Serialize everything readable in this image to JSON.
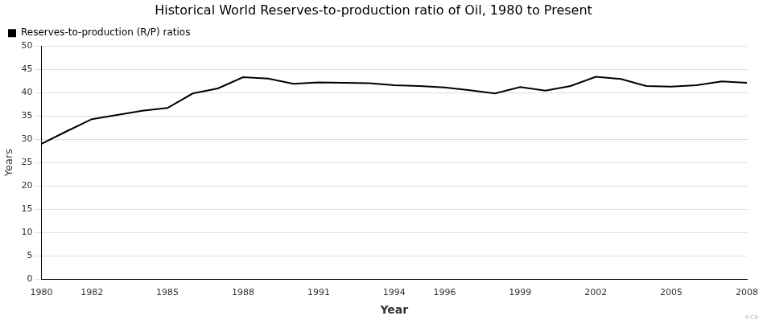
{
  "chart_data": {
    "type": "line",
    "title": "Historical World Reserves-to-production ratio of Oil, 1980 to Present",
    "x_label": "Year",
    "y_label": "Years",
    "annotation": "©CB",
    "x": [
      1980,
      1981,
      1982,
      1983,
      1984,
      1985,
      1986,
      1987,
      1988,
      1989,
      1990,
      1991,
      1992,
      1993,
      1994,
      1995,
      1996,
      1997,
      1998,
      1999,
      2000,
      2001,
      2002,
      2003,
      2004,
      2005,
      2006,
      2007,
      2008
    ],
    "series": [
      {
        "name": "Reserves-to-production (R/P) ratios",
        "color": "#000000",
        "values": [
          29.0,
          31.7,
          34.3,
          35.2,
          36.1,
          36.7,
          39.8,
          40.9,
          43.3,
          43.0,
          41.9,
          42.2,
          42.1,
          42.0,
          41.6,
          41.4,
          41.1,
          40.5,
          39.8,
          41.2,
          40.4,
          41.4,
          43.4,
          42.9,
          41.4,
          41.3,
          41.6,
          42.4,
          42.1
        ]
      }
    ],
    "xlim": [
      1980,
      2008
    ],
    "xticks": [
      1980,
      1982,
      1985,
      1988,
      1991,
      1994,
      1996,
      1999,
      2002,
      2005,
      2008
    ],
    "ylim": [
      0,
      50
    ],
    "yticks": [
      0,
      5,
      10,
      15,
      20,
      25,
      30,
      35,
      40,
      45,
      50
    ],
    "grid": true,
    "legend": "top-left"
  }
}
